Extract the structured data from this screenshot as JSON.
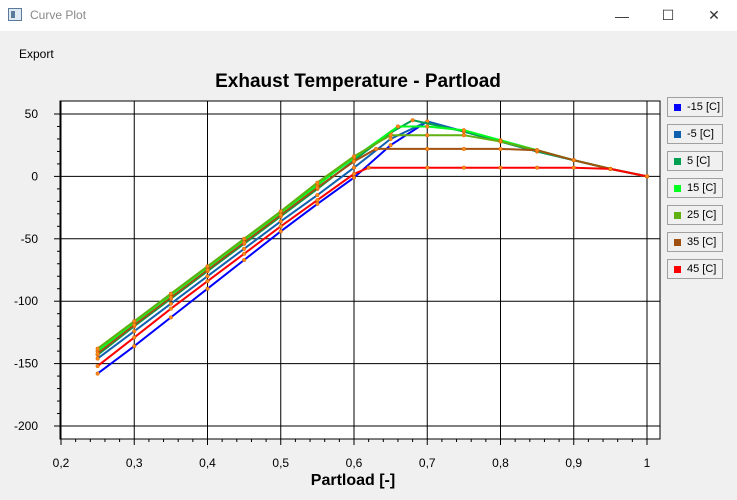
{
  "window": {
    "title": "Curve Plot",
    "minimize_glyph": "—",
    "maximize_glyph": "☐",
    "close_glyph": "✕",
    "icon": "chart-window-icon"
  },
  "menu": {
    "export_label": "Export"
  },
  "chart_data": {
    "type": "line",
    "title": "Exhaust Temperature - Partload",
    "xlabel": "Partload [-]",
    "ylabel": "",
    "xlim": [
      0.2,
      1.0
    ],
    "ylim": [
      -200,
      50
    ],
    "xticks": [
      "0,2",
      "0,3",
      "0,4",
      "0,5",
      "0,6",
      "0,7",
      "0,8",
      "0,9",
      "1"
    ],
    "yticks": [
      "50",
      "0",
      "-50",
      "-100",
      "-150",
      "-200"
    ],
    "grid": true,
    "legend_position": "right",
    "series": [
      {
        "name": "-15 [C]",
        "color": "#0000ff",
        "x": [
          0.25,
          0.3,
          0.35,
          0.4,
          0.45,
          0.5,
          0.55,
          0.6,
          0.65,
          0.7,
          0.75,
          0.8,
          0.85,
          0.9,
          0.95,
          1.0
        ],
        "y": [
          -158,
          -136,
          -113,
          -90,
          -67,
          -44,
          -22,
          -1,
          25,
          44,
          36,
          28,
          20,
          13,
          6,
          0
        ]
      },
      {
        "name": "-5 [C]",
        "color": "#1060b0",
        "x": [
          0.25,
          0.3,
          0.35,
          0.4,
          0.45,
          0.5,
          0.55,
          0.6,
          0.65,
          0.7,
          0.75,
          0.8,
          0.85,
          0.9,
          0.95,
          1.0
        ],
        "y": [
          -146,
          -124,
          -102,
          -80,
          -58,
          -36,
          -15,
          7,
          30,
          44,
          36,
          28,
          20,
          13,
          6,
          0
        ]
      },
      {
        "name": "5 [C]",
        "color": "#00a050",
        "x": [
          0.25,
          0.3,
          0.35,
          0.4,
          0.45,
          0.5,
          0.55,
          0.6,
          0.65,
          0.68,
          0.75,
          0.8,
          0.85,
          0.9,
          0.95,
          1.0
        ],
        "y": [
          -143,
          -120,
          -98,
          -76,
          -54,
          -32,
          -10,
          13,
          35,
          45,
          36,
          28,
          20,
          13,
          6,
          0
        ]
      },
      {
        "name": "15 [C]",
        "color": "#00ff20",
        "x": [
          0.25,
          0.3,
          0.35,
          0.4,
          0.45,
          0.5,
          0.55,
          0.6,
          0.66,
          0.7,
          0.75,
          0.8,
          0.85,
          0.9,
          0.95,
          1.0
        ],
        "y": [
          -140,
          -117,
          -95,
          -73,
          -51,
          -29,
          -7,
          15,
          40,
          40,
          37,
          29,
          21,
          13,
          6,
          0
        ]
      },
      {
        "name": "25 [C]",
        "color": "#60b010",
        "x": [
          0.25,
          0.3,
          0.35,
          0.4,
          0.45,
          0.5,
          0.55,
          0.6,
          0.65,
          0.7,
          0.75,
          0.8,
          0.85,
          0.9,
          0.95,
          1.0
        ],
        "y": [
          -138,
          -116,
          -94,
          -72,
          -50,
          -28,
          -5,
          16,
          33,
          33,
          33,
          28,
          21,
          13,
          6,
          0
        ]
      },
      {
        "name": "35 [C]",
        "color": "#a05010",
        "x": [
          0.25,
          0.3,
          0.35,
          0.4,
          0.45,
          0.5,
          0.55,
          0.6,
          0.63,
          0.7,
          0.75,
          0.8,
          0.85,
          0.9,
          0.95,
          1.0
        ],
        "y": [
          -142,
          -119,
          -97,
          -75,
          -53,
          -31,
          -9,
          12,
          22,
          22,
          22,
          22,
          21,
          13,
          6,
          0
        ]
      },
      {
        "name": "45 [C]",
        "color": "#ff0000",
        "x": [
          0.25,
          0.3,
          0.35,
          0.4,
          0.45,
          0.5,
          0.55,
          0.6,
          0.62,
          0.7,
          0.75,
          0.8,
          0.85,
          0.9,
          0.95,
          1.0
        ],
        "y": [
          -152,
          -129,
          -106,
          -84,
          -62,
          -40,
          -19,
          2,
          7,
          7,
          7,
          7,
          7,
          7,
          6,
          0
        ]
      }
    ]
  }
}
